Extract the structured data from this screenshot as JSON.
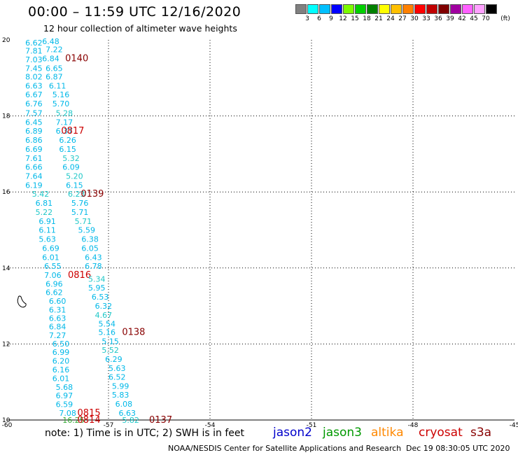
{
  "title": "00:00  –  11:59 UTC 12/16/2020",
  "subtitle": "12 hour collection of altimeter wave heights",
  "colorbar": {
    "labels": [
      "3",
      "6",
      "9",
      "12",
      "15",
      "18",
      "21",
      "24",
      "27",
      "30",
      "33",
      "36",
      "39",
      "42",
      "45",
      "70"
    ],
    "colors": [
      "#808080",
      "#00ffff",
      "#00c0ff",
      "#0000ff",
      "#7cfc00",
      "#00d000",
      "#008000",
      "#ffff00",
      "#ffc000",
      "#ff8000",
      "#ff0000",
      "#c00000",
      "#800000",
      "#a000a0",
      "#ff60ff",
      "#ffa0ff",
      "#000000"
    ],
    "unit": "(ft)"
  },
  "map": {
    "x_ticks": [
      "-60",
      "-57",
      "-54",
      "-51",
      "-48",
      "-45"
    ],
    "y_ticks": [
      "20",
      "18",
      "16",
      "14",
      "12",
      "10"
    ],
    "x_range": [
      -60,
      -45
    ],
    "y_range": [
      10,
      20
    ]
  },
  "colors": {
    "jason2": "#0000cc",
    "jason3": "#009900",
    "altika": "#ff8800",
    "cryosat": "#cc0000",
    "s3a": "#880000",
    "swh_cyan": "#00b8e8",
    "swh_green": "#33aa33",
    "swh_teal": "#20c8c8"
  },
  "labels": [
    {
      "t": "6.48",
      "lon": -58.96,
      "lat": 19.96,
      "c": "swh_cyan"
    },
    {
      "t": "6.62",
      "lon": -59.46,
      "lat": 19.93,
      "c": "swh_cyan"
    },
    {
      "t": "7.22",
      "lon": -58.86,
      "lat": 19.75,
      "c": "swh_cyan"
    },
    {
      "t": "7.81",
      "lon": -59.46,
      "lat": 19.71,
      "c": "swh_cyan"
    },
    {
      "t": "6.84",
      "lon": -58.96,
      "lat": 19.51,
      "c": "swh_cyan"
    },
    {
      "t": "7.03",
      "lon": -59.46,
      "lat": 19.48,
      "c": "swh_cyan"
    },
    {
      "t": "0140",
      "lon": -58.28,
      "lat": 19.51,
      "c": "s3a",
      "time": true
    },
    {
      "t": "6.65",
      "lon": -58.86,
      "lat": 19.25,
      "c": "swh_cyan"
    },
    {
      "t": "7.45",
      "lon": -59.46,
      "lat": 19.25,
      "c": "swh_cyan"
    },
    {
      "t": "6.87",
      "lon": -58.86,
      "lat": 19.03,
      "c": "swh_cyan"
    },
    {
      "t": "8.02",
      "lon": -59.46,
      "lat": 19.03,
      "c": "swh_cyan"
    },
    {
      "t": "6.11",
      "lon": -58.76,
      "lat": 18.79,
      "c": "swh_cyan"
    },
    {
      "t": "6.63",
      "lon": -59.46,
      "lat": 18.79,
      "c": "swh_cyan"
    },
    {
      "t": "5.16",
      "lon": -58.66,
      "lat": 18.56,
      "c": "swh_cyan"
    },
    {
      "t": "6.67",
      "lon": -59.46,
      "lat": 18.56,
      "c": "swh_cyan"
    },
    {
      "t": "5.70",
      "lon": -58.66,
      "lat": 18.32,
      "c": "swh_cyan"
    },
    {
      "t": "6.76",
      "lon": -59.46,
      "lat": 18.32,
      "c": "swh_cyan"
    },
    {
      "t": "5.28",
      "lon": -58.56,
      "lat": 18.08,
      "c": "swh_teal"
    },
    {
      "t": "7.57",
      "lon": -59.46,
      "lat": 18.08,
      "c": "swh_cyan"
    },
    {
      "t": "7.17",
      "lon": -58.56,
      "lat": 17.84,
      "c": "swh_cyan"
    },
    {
      "t": "6.45",
      "lon": -59.46,
      "lat": 17.84,
      "c": "swh_cyan"
    },
    {
      "t": "6.37",
      "lon": -58.56,
      "lat": 17.61,
      "c": "swh_cyan"
    },
    {
      "t": "6.89",
      "lon": -59.46,
      "lat": 17.61,
      "c": "swh_cyan"
    },
    {
      "t": "0817",
      "lon": -58.4,
      "lat": 17.61,
      "c": "cryosat",
      "time": true
    },
    {
      "t": "6.26",
      "lon": -58.46,
      "lat": 17.37,
      "c": "swh_cyan"
    },
    {
      "t": "6.86",
      "lon": -59.46,
      "lat": 17.37,
      "c": "swh_cyan"
    },
    {
      "t": "6.15",
      "lon": -58.46,
      "lat": 17.13,
      "c": "swh_cyan"
    },
    {
      "t": "6.69",
      "lon": -59.46,
      "lat": 17.13,
      "c": "swh_cyan"
    },
    {
      "t": "5.32",
      "lon": -58.36,
      "lat": 16.89,
      "c": "swh_teal"
    },
    {
      "t": "7.61",
      "lon": -59.46,
      "lat": 16.89,
      "c": "swh_cyan"
    },
    {
      "t": "6.09",
      "lon": -58.36,
      "lat": 16.66,
      "c": "swh_cyan"
    },
    {
      "t": "6.66",
      "lon": -59.46,
      "lat": 16.66,
      "c": "swh_cyan"
    },
    {
      "t": "5.20",
      "lon": -58.26,
      "lat": 16.42,
      "c": "swh_teal"
    },
    {
      "t": "7.64",
      "lon": -59.46,
      "lat": 16.42,
      "c": "swh_cyan"
    },
    {
      "t": "6.15",
      "lon": -58.26,
      "lat": 16.18,
      "c": "swh_cyan"
    },
    {
      "t": "6.19",
      "lon": -59.46,
      "lat": 16.18,
      "c": "swh_cyan"
    },
    {
      "t": "5.42",
      "lon": -59.26,
      "lat": 15.95,
      "c": "swh_teal"
    },
    {
      "t": "6.23",
      "lon": -58.2,
      "lat": 15.95,
      "c": "swh_teal"
    },
    {
      "t": "0139",
      "lon": -57.82,
      "lat": 15.95,
      "c": "s3a",
      "time": true
    },
    {
      "t": "6.81",
      "lon": -59.16,
      "lat": 15.71,
      "c": "swh_cyan"
    },
    {
      "t": "5.76",
      "lon": -58.1,
      "lat": 15.71,
      "c": "swh_cyan"
    },
    {
      "t": "5.22",
      "lon": -59.16,
      "lat": 15.47,
      "c": "swh_teal"
    },
    {
      "t": "5.71",
      "lon": -58.1,
      "lat": 15.47,
      "c": "swh_cyan"
    },
    {
      "t": "6.91",
      "lon": -59.06,
      "lat": 15.23,
      "c": "swh_cyan"
    },
    {
      "t": "5.71",
      "lon": -58.0,
      "lat": 15.23,
      "c": "swh_teal"
    },
    {
      "t": "6.11",
      "lon": -59.06,
      "lat": 15.0,
      "c": "swh_cyan"
    },
    {
      "t": "5.59",
      "lon": -57.9,
      "lat": 15.0,
      "c": "swh_cyan"
    },
    {
      "t": "5.63",
      "lon": -59.06,
      "lat": 14.76,
      "c": "swh_cyan"
    },
    {
      "t": "6.38",
      "lon": -57.8,
      "lat": 14.76,
      "c": "swh_cyan"
    },
    {
      "t": "6.69",
      "lon": -58.96,
      "lat": 14.52,
      "c": "swh_cyan"
    },
    {
      "t": "6.05",
      "lon": -57.8,
      "lat": 14.52,
      "c": "swh_cyan"
    },
    {
      "t": "6.01",
      "lon": -58.96,
      "lat": 14.28,
      "c": "swh_cyan"
    },
    {
      "t": "6.43",
      "lon": -57.7,
      "lat": 14.28,
      "c": "swh_cyan"
    },
    {
      "t": "6.55",
      "lon": -58.9,
      "lat": 14.05,
      "c": "swh_cyan"
    },
    {
      "t": "6.78",
      "lon": -57.7,
      "lat": 14.05,
      "c": "swh_cyan"
    },
    {
      "t": "7.06",
      "lon": -58.9,
      "lat": 13.81,
      "c": "swh_cyan"
    },
    {
      "t": "0816",
      "lon": -58.2,
      "lat": 13.81,
      "c": "cryosat",
      "time": true
    },
    {
      "t": "5.34",
      "lon": -57.6,
      "lat": 13.71,
      "c": "swh_teal"
    },
    {
      "t": "6.96",
      "lon": -58.86,
      "lat": 13.58,
      "c": "swh_cyan"
    },
    {
      "t": "5.95",
      "lon": -57.6,
      "lat": 13.48,
      "c": "swh_cyan"
    },
    {
      "t": "6.62",
      "lon": -58.86,
      "lat": 13.36,
      "c": "swh_cyan"
    },
    {
      "t": "6.53",
      "lon": -57.5,
      "lat": 13.24,
      "c": "swh_cyan"
    },
    {
      "t": "6.60",
      "lon": -58.76,
      "lat": 13.13,
      "c": "swh_cyan"
    },
    {
      "t": "6.32",
      "lon": -57.4,
      "lat": 13.0,
      "c": "swh_cyan"
    },
    {
      "t": "6.31",
      "lon": -58.76,
      "lat": 12.9,
      "c": "swh_cyan"
    },
    {
      "t": "4.67",
      "lon": -57.4,
      "lat": 12.76,
      "c": "swh_teal"
    },
    {
      "t": "6.63",
      "lon": -58.76,
      "lat": 12.68,
      "c": "swh_cyan"
    },
    {
      "t": "5.54",
      "lon": -57.3,
      "lat": 12.53,
      "c": "swh_cyan"
    },
    {
      "t": "6.84",
      "lon": -58.76,
      "lat": 12.46,
      "c": "swh_cyan"
    },
    {
      "t": "5.16",
      "lon": -57.3,
      "lat": 12.31,
      "c": "swh_cyan"
    },
    {
      "t": "0138",
      "lon": -56.6,
      "lat": 12.31,
      "c": "s3a",
      "time": true
    },
    {
      "t": "7.27",
      "lon": -58.76,
      "lat": 12.23,
      "c": "swh_cyan"
    },
    {
      "t": "5.15",
      "lon": -57.2,
      "lat": 12.07,
      "c": "swh_cyan"
    },
    {
      "t": "6.50",
      "lon": -58.66,
      "lat": 12.01,
      "c": "swh_cyan"
    },
    {
      "t": "5.52",
      "lon": -57.2,
      "lat": 11.84,
      "c": "swh_teal"
    },
    {
      "t": "6.99",
      "lon": -58.66,
      "lat": 11.79,
      "c": "swh_cyan"
    },
    {
      "t": "6.29",
      "lon": -57.1,
      "lat": 11.6,
      "c": "swh_cyan"
    },
    {
      "t": "6.20",
      "lon": -58.66,
      "lat": 11.56,
      "c": "swh_cyan"
    },
    {
      "t": "5.63",
      "lon": -57.0,
      "lat": 11.36,
      "c": "swh_cyan"
    },
    {
      "t": "6.16",
      "lon": -58.66,
      "lat": 11.33,
      "c": "swh_cyan"
    },
    {
      "t": "6.52",
      "lon": -57.0,
      "lat": 11.13,
      "c": "swh_cyan"
    },
    {
      "t": "6.01",
      "lon": -58.66,
      "lat": 11.1,
      "c": "swh_cyan"
    },
    {
      "t": "5.99",
      "lon": -56.9,
      "lat": 10.89,
      "c": "swh_cyan"
    },
    {
      "t": "5.68",
      "lon": -58.56,
      "lat": 10.87,
      "c": "swh_cyan"
    },
    {
      "t": "5.83",
      "lon": -56.9,
      "lat": 10.66,
      "c": "swh_cyan"
    },
    {
      "t": "6.97",
      "lon": -58.56,
      "lat": 10.64,
      "c": "swh_cyan"
    },
    {
      "t": "6.59",
      "lon": -58.56,
      "lat": 10.41,
      "c": "swh_cyan"
    },
    {
      "t": "6.08",
      "lon": -56.8,
      "lat": 10.42,
      "c": "swh_cyan"
    },
    {
      "t": "7.08",
      "lon": -58.46,
      "lat": 10.18,
      "c": "swh_cyan"
    },
    {
      "t": "0815",
      "lon": -57.92,
      "lat": 10.18,
      "c": "cryosat",
      "time": true
    },
    {
      "t": "6.63",
      "lon": -56.7,
      "lat": 10.18,
      "c": "swh_cyan"
    },
    {
      "t": "16.25",
      "lon": -58.36,
      "lat": 10.0,
      "c": "swh_green"
    },
    {
      "t": "0814",
      "lon": -57.92,
      "lat": 10.0,
      "c": "cryosat",
      "time": true
    },
    {
      "t": "5.82",
      "lon": -56.6,
      "lat": 10.0,
      "c": "swh_teal"
    },
    {
      "t": "0137",
      "lon": -55.8,
      "lat": 10.0,
      "c": "s3a",
      "time": true
    }
  ],
  "note": "note:  1) Time is in UTC;  2) SWH is in feet",
  "legend": [
    {
      "name": "jason2",
      "color": "jason2"
    },
    {
      "name": "jason3",
      "color": "jason3"
    },
    {
      "name": "altika",
      "color": "altika"
    },
    {
      "name": "cryosat",
      "color": "cryosat"
    },
    {
      "name": "s3a",
      "color": "s3a"
    }
  ],
  "credit": "NOAA/NESDIS Center for Satellite Applications and Research",
  "timestamp": "Dec 19 08:30:05 UTC 2020"
}
